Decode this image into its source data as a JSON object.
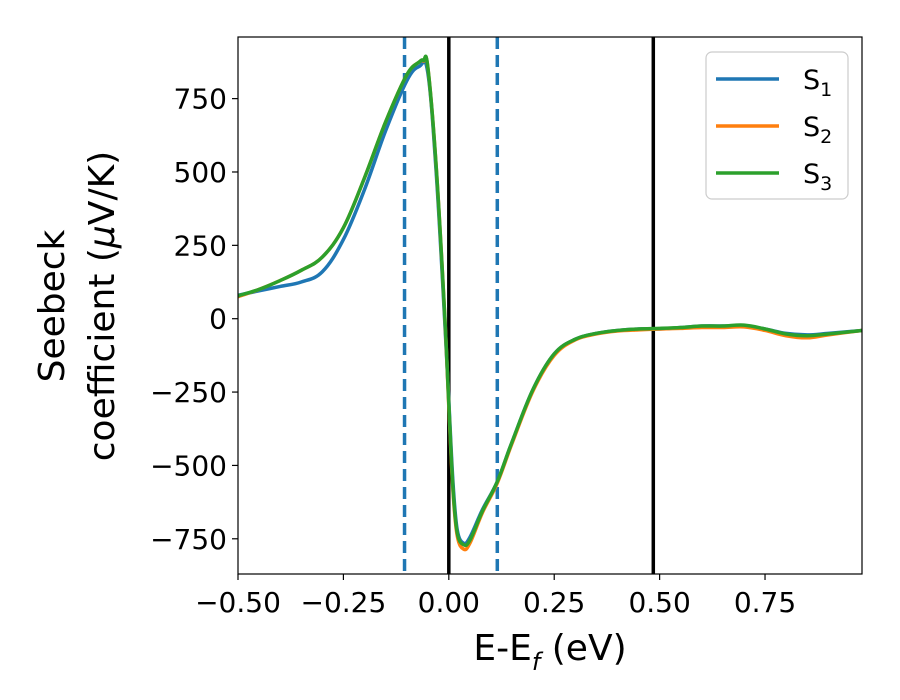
{
  "chart_data": {
    "type": "line",
    "xlabel": {
      "main": "E-E",
      "sub": "f",
      "unit": " (eV)"
    },
    "ylabel": {
      "line1": "Seebeck",
      "line2": "coefficient  (",
      "mu": "μ",
      "unit": "V/K)"
    },
    "xlim": [
      -0.5,
      0.98
    ],
    "ylim": [
      -870,
      960
    ],
    "x_ticks": [
      {
        "value": -0.5,
        "label": "−0.50"
      },
      {
        "value": -0.25,
        "label": "−0.25"
      },
      {
        "value": 0.0,
        "label": "0.00"
      },
      {
        "value": 0.25,
        "label": "0.25"
      },
      {
        "value": 0.5,
        "label": "0.50"
      },
      {
        "value": 0.75,
        "label": "0.75"
      }
    ],
    "y_ticks": [
      {
        "value": 750,
        "label": "750"
      },
      {
        "value": 500,
        "label": "500"
      },
      {
        "value": 250,
        "label": "250"
      },
      {
        "value": 0,
        "label": "0"
      },
      {
        "value": -250,
        "label": "−250"
      },
      {
        "value": -500,
        "label": "−500"
      },
      {
        "value": -750,
        "label": "−750"
      }
    ],
    "legend_position": "top-right",
    "series": [
      {
        "name": "S",
        "sub": "1",
        "color": "#1f77b4",
        "x": [
          -0.5,
          -0.45,
          -0.4,
          -0.35,
          -0.3,
          -0.25,
          -0.2,
          -0.15,
          -0.1,
          -0.07,
          -0.05,
          -0.03,
          -0.01,
          0.0,
          0.01,
          0.02,
          0.035,
          0.05,
          0.08,
          0.115,
          0.15,
          0.2,
          0.25,
          0.3,
          0.35,
          0.4,
          0.45,
          0.5,
          0.55,
          0.6,
          0.65,
          0.7,
          0.75,
          0.8,
          0.85,
          0.9,
          0.98
        ],
        "y": [
          80,
          95,
          110,
          125,
          160,
          270,
          440,
          640,
          810,
          860,
          840,
          500,
          0,
          -280,
          -560,
          -720,
          -765,
          -745,
          -650,
          -555,
          -420,
          -240,
          -120,
          -70,
          -50,
          -40,
          -35,
          -35,
          -30,
          -25,
          -25,
          -25,
          -35,
          -50,
          -55,
          -50,
          -40
        ]
      },
      {
        "name": "S",
        "sub": "2",
        "color": "#ff7f0e",
        "x": [
          -0.5,
          -0.45,
          -0.4,
          -0.35,
          -0.3,
          -0.25,
          -0.2,
          -0.15,
          -0.1,
          -0.07,
          -0.06,
          -0.05,
          -0.03,
          -0.01,
          0.0,
          0.01,
          0.02,
          0.035,
          0.05,
          0.08,
          0.115,
          0.15,
          0.2,
          0.25,
          0.3,
          0.35,
          0.4,
          0.45,
          0.5,
          0.55,
          0.6,
          0.65,
          0.7,
          0.75,
          0.8,
          0.85,
          0.9,
          0.98
        ],
        "y": [
          75,
          100,
          130,
          165,
          210,
          310,
          480,
          670,
          830,
          875,
          878,
          860,
          520,
          20,
          -300,
          -590,
          -740,
          -785,
          -765,
          -660,
          -560,
          -425,
          -245,
          -125,
          -72,
          -52,
          -42,
          -38,
          -35,
          -33,
          -30,
          -30,
          -28,
          -40,
          -58,
          -65,
          -55,
          -40
        ]
      },
      {
        "name": "S",
        "sub": "3",
        "color": "#2ca02c",
        "x": [
          -0.5,
          -0.45,
          -0.4,
          -0.35,
          -0.3,
          -0.25,
          -0.2,
          -0.15,
          -0.1,
          -0.07,
          -0.06,
          -0.05,
          -0.03,
          -0.01,
          0.0,
          0.01,
          0.02,
          0.035,
          0.05,
          0.08,
          0.115,
          0.15,
          0.2,
          0.25,
          0.3,
          0.35,
          0.4,
          0.45,
          0.5,
          0.55,
          0.6,
          0.65,
          0.7,
          0.75,
          0.8,
          0.85,
          0.9,
          0.98
        ],
        "y": [
          78,
          100,
          130,
          165,
          210,
          310,
          480,
          670,
          830,
          875,
          880,
          860,
          520,
          20,
          -290,
          -580,
          -730,
          -770,
          -755,
          -655,
          -555,
          -420,
          -240,
          -120,
          -70,
          -50,
          -40,
          -35,
          -33,
          -30,
          -25,
          -25,
          -22,
          -35,
          -52,
          -58,
          -52,
          -40
        ]
      }
    ],
    "reference_lines": [
      {
        "x": -0.105,
        "style": "dashed",
        "color": "#1f77b4"
      },
      {
        "x": 0.0,
        "style": "solid",
        "color": "#000000"
      },
      {
        "x": 0.115,
        "style": "dashed",
        "color": "#1f77b4"
      },
      {
        "x": 0.485,
        "style": "solid",
        "color": "#000000"
      }
    ],
    "grid": false
  }
}
